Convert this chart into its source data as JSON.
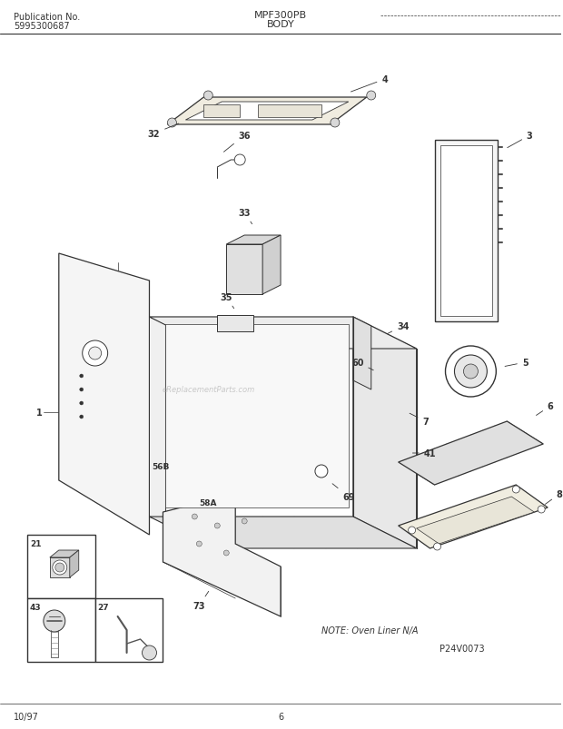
{
  "title_model": "MPF300PB",
  "title_section": "BODY",
  "pub_no_label": "Publication No.",
  "pub_no": "5995300687",
  "date": "10/97",
  "page": "6",
  "note": "NOTE: Oven Liner N/A",
  "part_id": "P24V0073",
  "bg_color": "#ffffff",
  "lc": "#333333",
  "lc_light": "#888888",
  "watermark": "eReplacementParts.com"
}
